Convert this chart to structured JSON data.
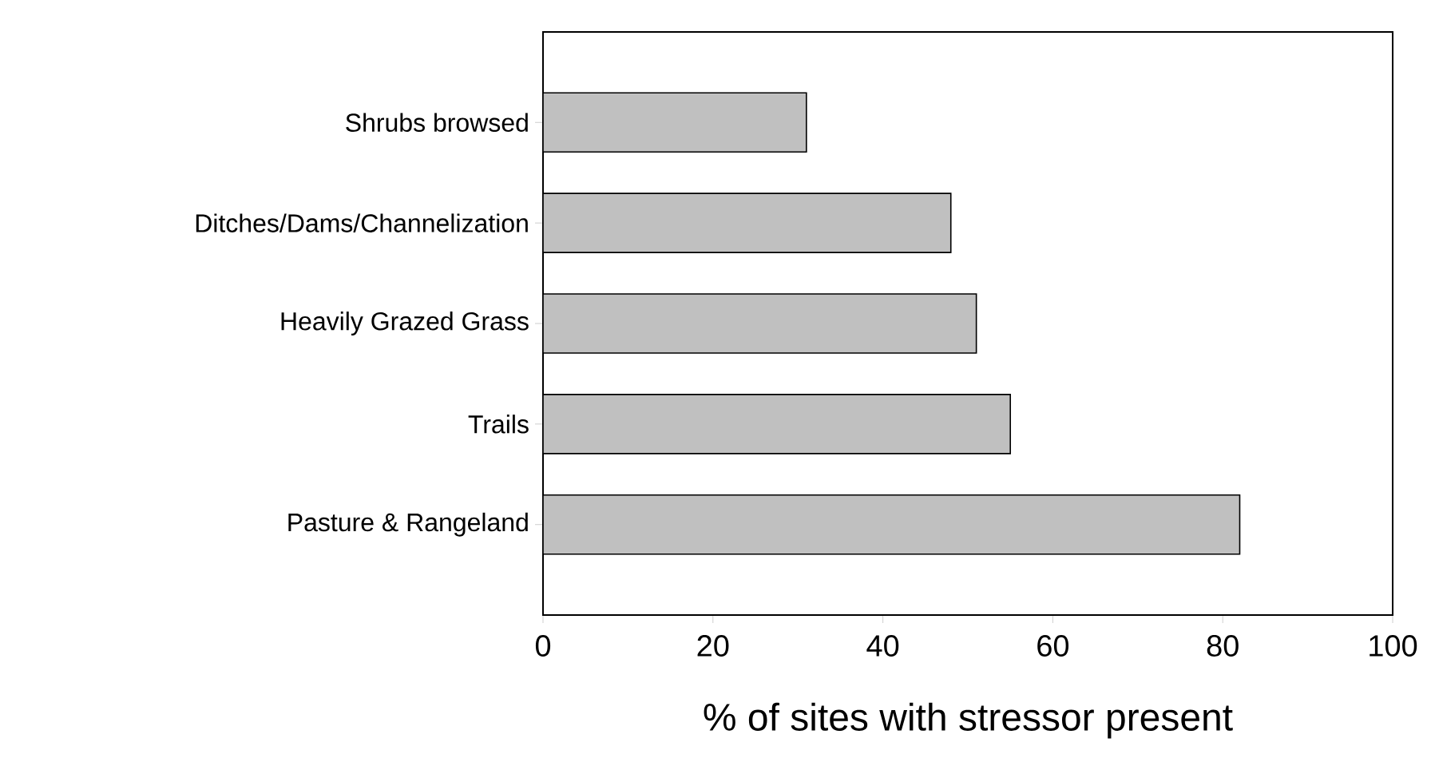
{
  "chart_data": {
    "type": "bar",
    "orientation": "horizontal",
    "xlabel": "% of sites with stressor present",
    "categories": [
      "Shrubs browsed",
      "Ditches/Dams/Channelization",
      "Heavily Grazed Grass",
      "Trails",
      "Pasture & Rangeland"
    ],
    "values": [
      31,
      48,
      51,
      55,
      82
    ],
    "color": "#c0c0c0",
    "xlim": [
      0,
      100
    ],
    "xticks": [
      0,
      20,
      40,
      60,
      80,
      100
    ]
  }
}
